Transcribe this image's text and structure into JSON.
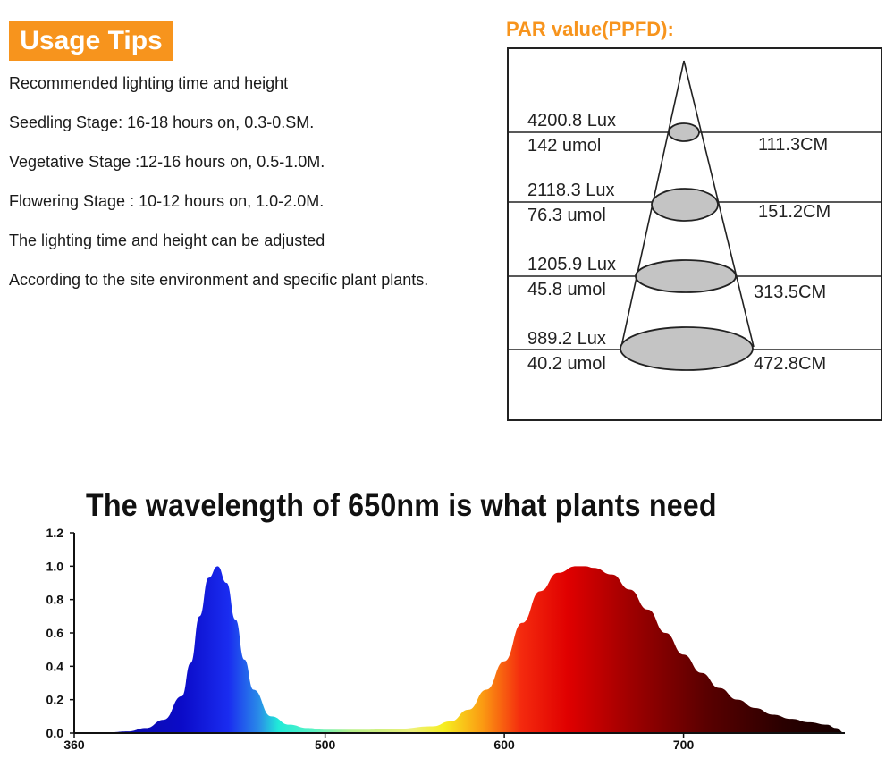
{
  "usage": {
    "badge": "Usage Tips",
    "lines": [
      "Recommended lighting time and height",
      "Seedling Stage: 16-18 hours on, 0.3-0.SM.",
      "Vegetative Stage :12-16 hours on, 0.5-1.0M.",
      "Flowering Stage : 10-12 hours on, 1.0-2.0M.",
      "The lighting time and height can be adjusted",
      "According to the site environment and specific plant plants."
    ]
  },
  "par": {
    "title": "PAR value(PPFD):",
    "levels": [
      {
        "lux": "4200.8 Lux",
        "umol": "142 umol",
        "height": "111.3CM"
      },
      {
        "lux": "2118.3 Lux",
        "umol": "76.3 umol",
        "height": "151.2CM"
      },
      {
        "lux": "1205.9 Lux",
        "umol": "45.8 umol",
        "height": "313.5CM"
      },
      {
        "lux": "989.2 Lux",
        "umol": "40.2 umol",
        "height": "472.8CM"
      }
    ]
  },
  "chart_data": {
    "type": "area",
    "title": "The wavelength of 650nm is what plants need",
    "xlabel": "",
    "ylabel": "",
    "x_ticks": [
      360,
      500,
      600,
      700
    ],
    "y_ticks": [
      "0.0",
      "0.2",
      "0.4",
      "0.6",
      "0.8",
      "1.0",
      "1.2"
    ],
    "xlim": [
      360,
      790
    ],
    "ylim": [
      0,
      1.2
    ],
    "grid": false,
    "series": [
      {
        "x": [
          360,
          380,
          390,
          400,
          410,
          420,
          425,
          430,
          435,
          440,
          445,
          450,
          455,
          460,
          470,
          480,
          490,
          500,
          520,
          540,
          560,
          570,
          580,
          590,
          600,
          610,
          620,
          630,
          640,
          645,
          650,
          660,
          670,
          680,
          690,
          700,
          710,
          720,
          730,
          740,
          750,
          760,
          770,
          780,
          785,
          790
        ],
        "values": [
          0,
          0.005,
          0.01,
          0.03,
          0.08,
          0.22,
          0.42,
          0.7,
          0.93,
          1.0,
          0.9,
          0.68,
          0.44,
          0.26,
          0.1,
          0.05,
          0.03,
          0.02,
          0.02,
          0.025,
          0.04,
          0.07,
          0.14,
          0.26,
          0.43,
          0.66,
          0.85,
          0.96,
          1.0,
          1.0,
          0.99,
          0.95,
          0.86,
          0.74,
          0.6,
          0.47,
          0.36,
          0.27,
          0.2,
          0.15,
          0.11,
          0.085,
          0.065,
          0.05,
          0.03,
          0
        ]
      }
    ]
  }
}
